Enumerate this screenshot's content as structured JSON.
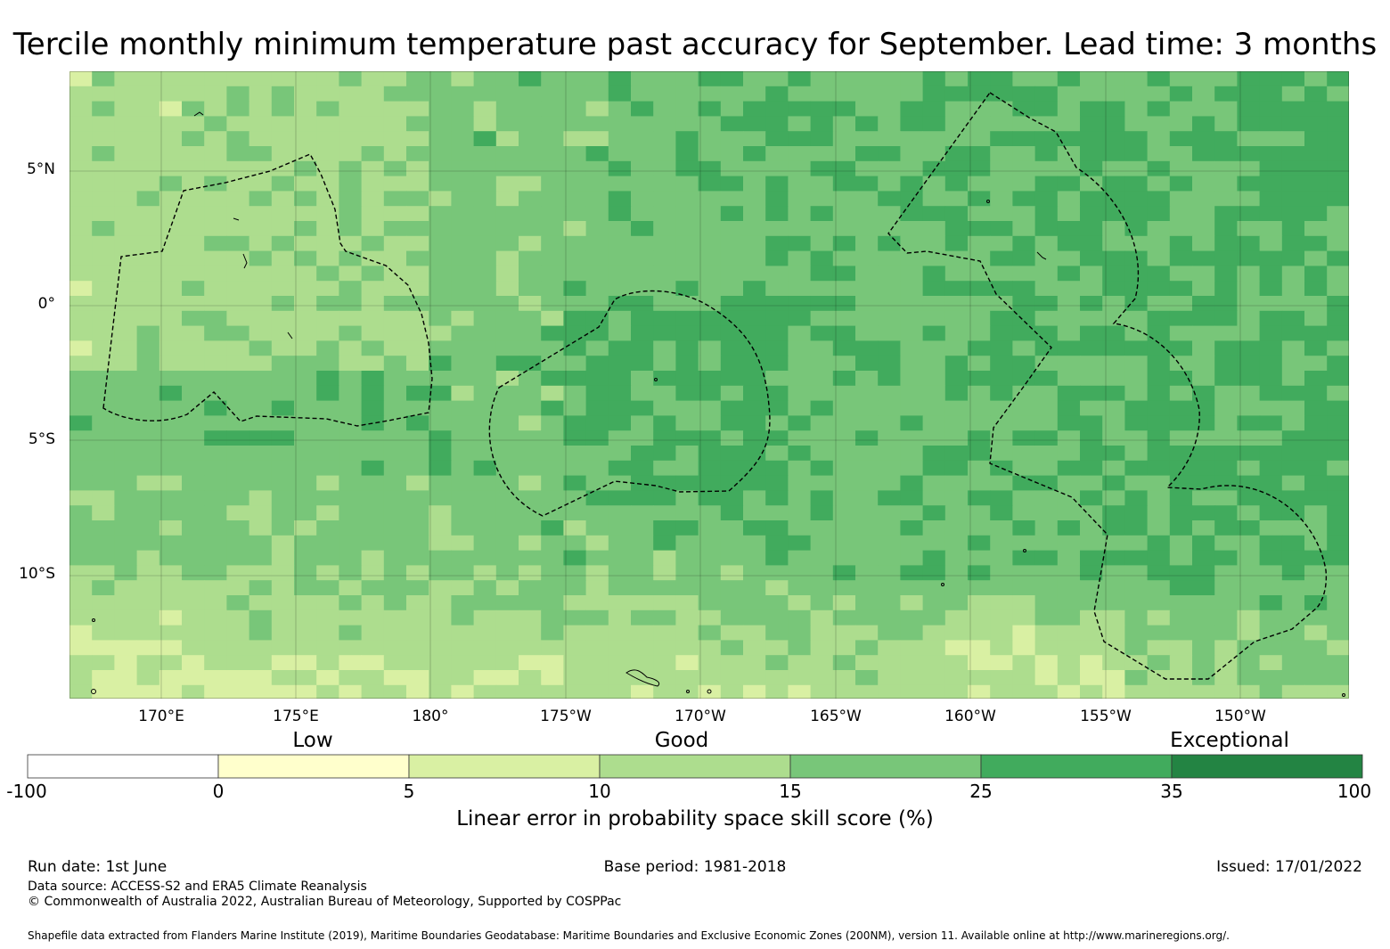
{
  "title": "Tercile monthly minimum temperature past accuracy for September. Lead time: 3 months",
  "map": {
    "lat_labels": [
      "5°N",
      "0°",
      "5°S",
      "10°S"
    ],
    "lon_labels": [
      "170°E",
      "175°E",
      "180°",
      "175°W",
      "170°W",
      "165°W",
      "160°W",
      "155°W",
      "150°W"
    ],
    "shapes": "EEZ boundaries (dashed)"
  },
  "legend": {
    "categories": [
      "Low",
      "Good",
      "Exceptional"
    ],
    "ticks": [
      "-100",
      "0",
      "5",
      "10",
      "15",
      "25",
      "35",
      "100"
    ],
    "colors": [
      "#ffffff",
      "#ffffcc",
      "#d9f0a3",
      "#addd8e",
      "#78c679",
      "#41ab5d",
      "#238443"
    ],
    "label": "Linear error in probability space skill score (%)"
  },
  "footer": {
    "run_date": "Run date: 1st June",
    "base_period": "Base period: 1981-2018",
    "issued": "Issued: 17/01/2022",
    "data_source": "Data source: ACCESS-S2 and ERA5 Climate Reanalysis",
    "copyright": "© Commonwealth of Australia 2022, Australian Bureau of Meteorology, Supported by COSPPac",
    "shapefile": "Shapefile data extracted from Flanders Marine Institute (2019), Maritime Boundaries Geodatabase: Maritime Boundaries and Exclusive Economic Zones (200NM), version 11. Available online at http://www.marineregions.org/."
  }
}
